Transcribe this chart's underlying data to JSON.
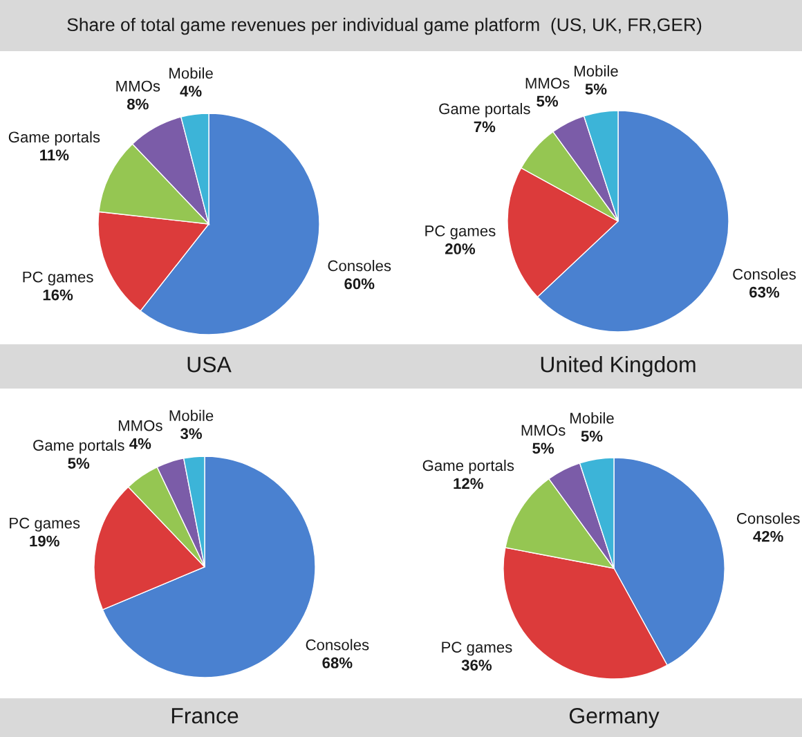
{
  "chart_data": [
    {
      "type": "pie",
      "title": "Share of total game revenues per individual game platform  (US, UK, FR,GER)",
      "xlabel": "USA",
      "categories": [
        "Consoles",
        "PC games",
        "Game portals",
        "MMOs",
        "Mobile"
      ],
      "values": [
        60,
        16,
        11,
        8,
        4
      ],
      "value_labels": [
        "60%",
        "16%",
        "11%",
        "8%",
        "4%"
      ],
      "colors": [
        "#4a81d0",
        "#dc3b3b",
        "#95c652",
        "#7b5ca8",
        "#3cb4d8"
      ]
    },
    {
      "type": "pie",
      "xlabel": "United Kingdom",
      "categories": [
        "Consoles",
        "PC games",
        "Game portals",
        "MMOs",
        "Mobile"
      ],
      "values": [
        63,
        20,
        7,
        5,
        5
      ],
      "value_labels": [
        "63%",
        "20%",
        "7%",
        "5%",
        "5%"
      ],
      "colors": [
        "#4a81d0",
        "#dc3b3b",
        "#95c652",
        "#7b5ca8",
        "#3cb4d8"
      ]
    },
    {
      "type": "pie",
      "xlabel": "France",
      "categories": [
        "Consoles",
        "PC games",
        "Game portals",
        "MMOs",
        "Mobile"
      ],
      "values": [
        68,
        19,
        5,
        4,
        3
      ],
      "value_labels": [
        "68%",
        "19%",
        "5%",
        "4%",
        "3%"
      ],
      "colors": [
        "#4a81d0",
        "#dc3b3b",
        "#95c652",
        "#7b5ca8",
        "#3cb4d8"
      ]
    },
    {
      "type": "pie",
      "xlabel": "Germany",
      "categories": [
        "Consoles",
        "PC games",
        "Game portals",
        "MMOs",
        "Mobile"
      ],
      "values": [
        42,
        36,
        12,
        5,
        5
      ],
      "value_labels": [
        "42%",
        "36%",
        "12%",
        "5%",
        "5%"
      ],
      "colors": [
        "#4a81d0",
        "#dc3b3b",
        "#95c652",
        "#7b5ca8",
        "#3cb4d8"
      ]
    }
  ]
}
